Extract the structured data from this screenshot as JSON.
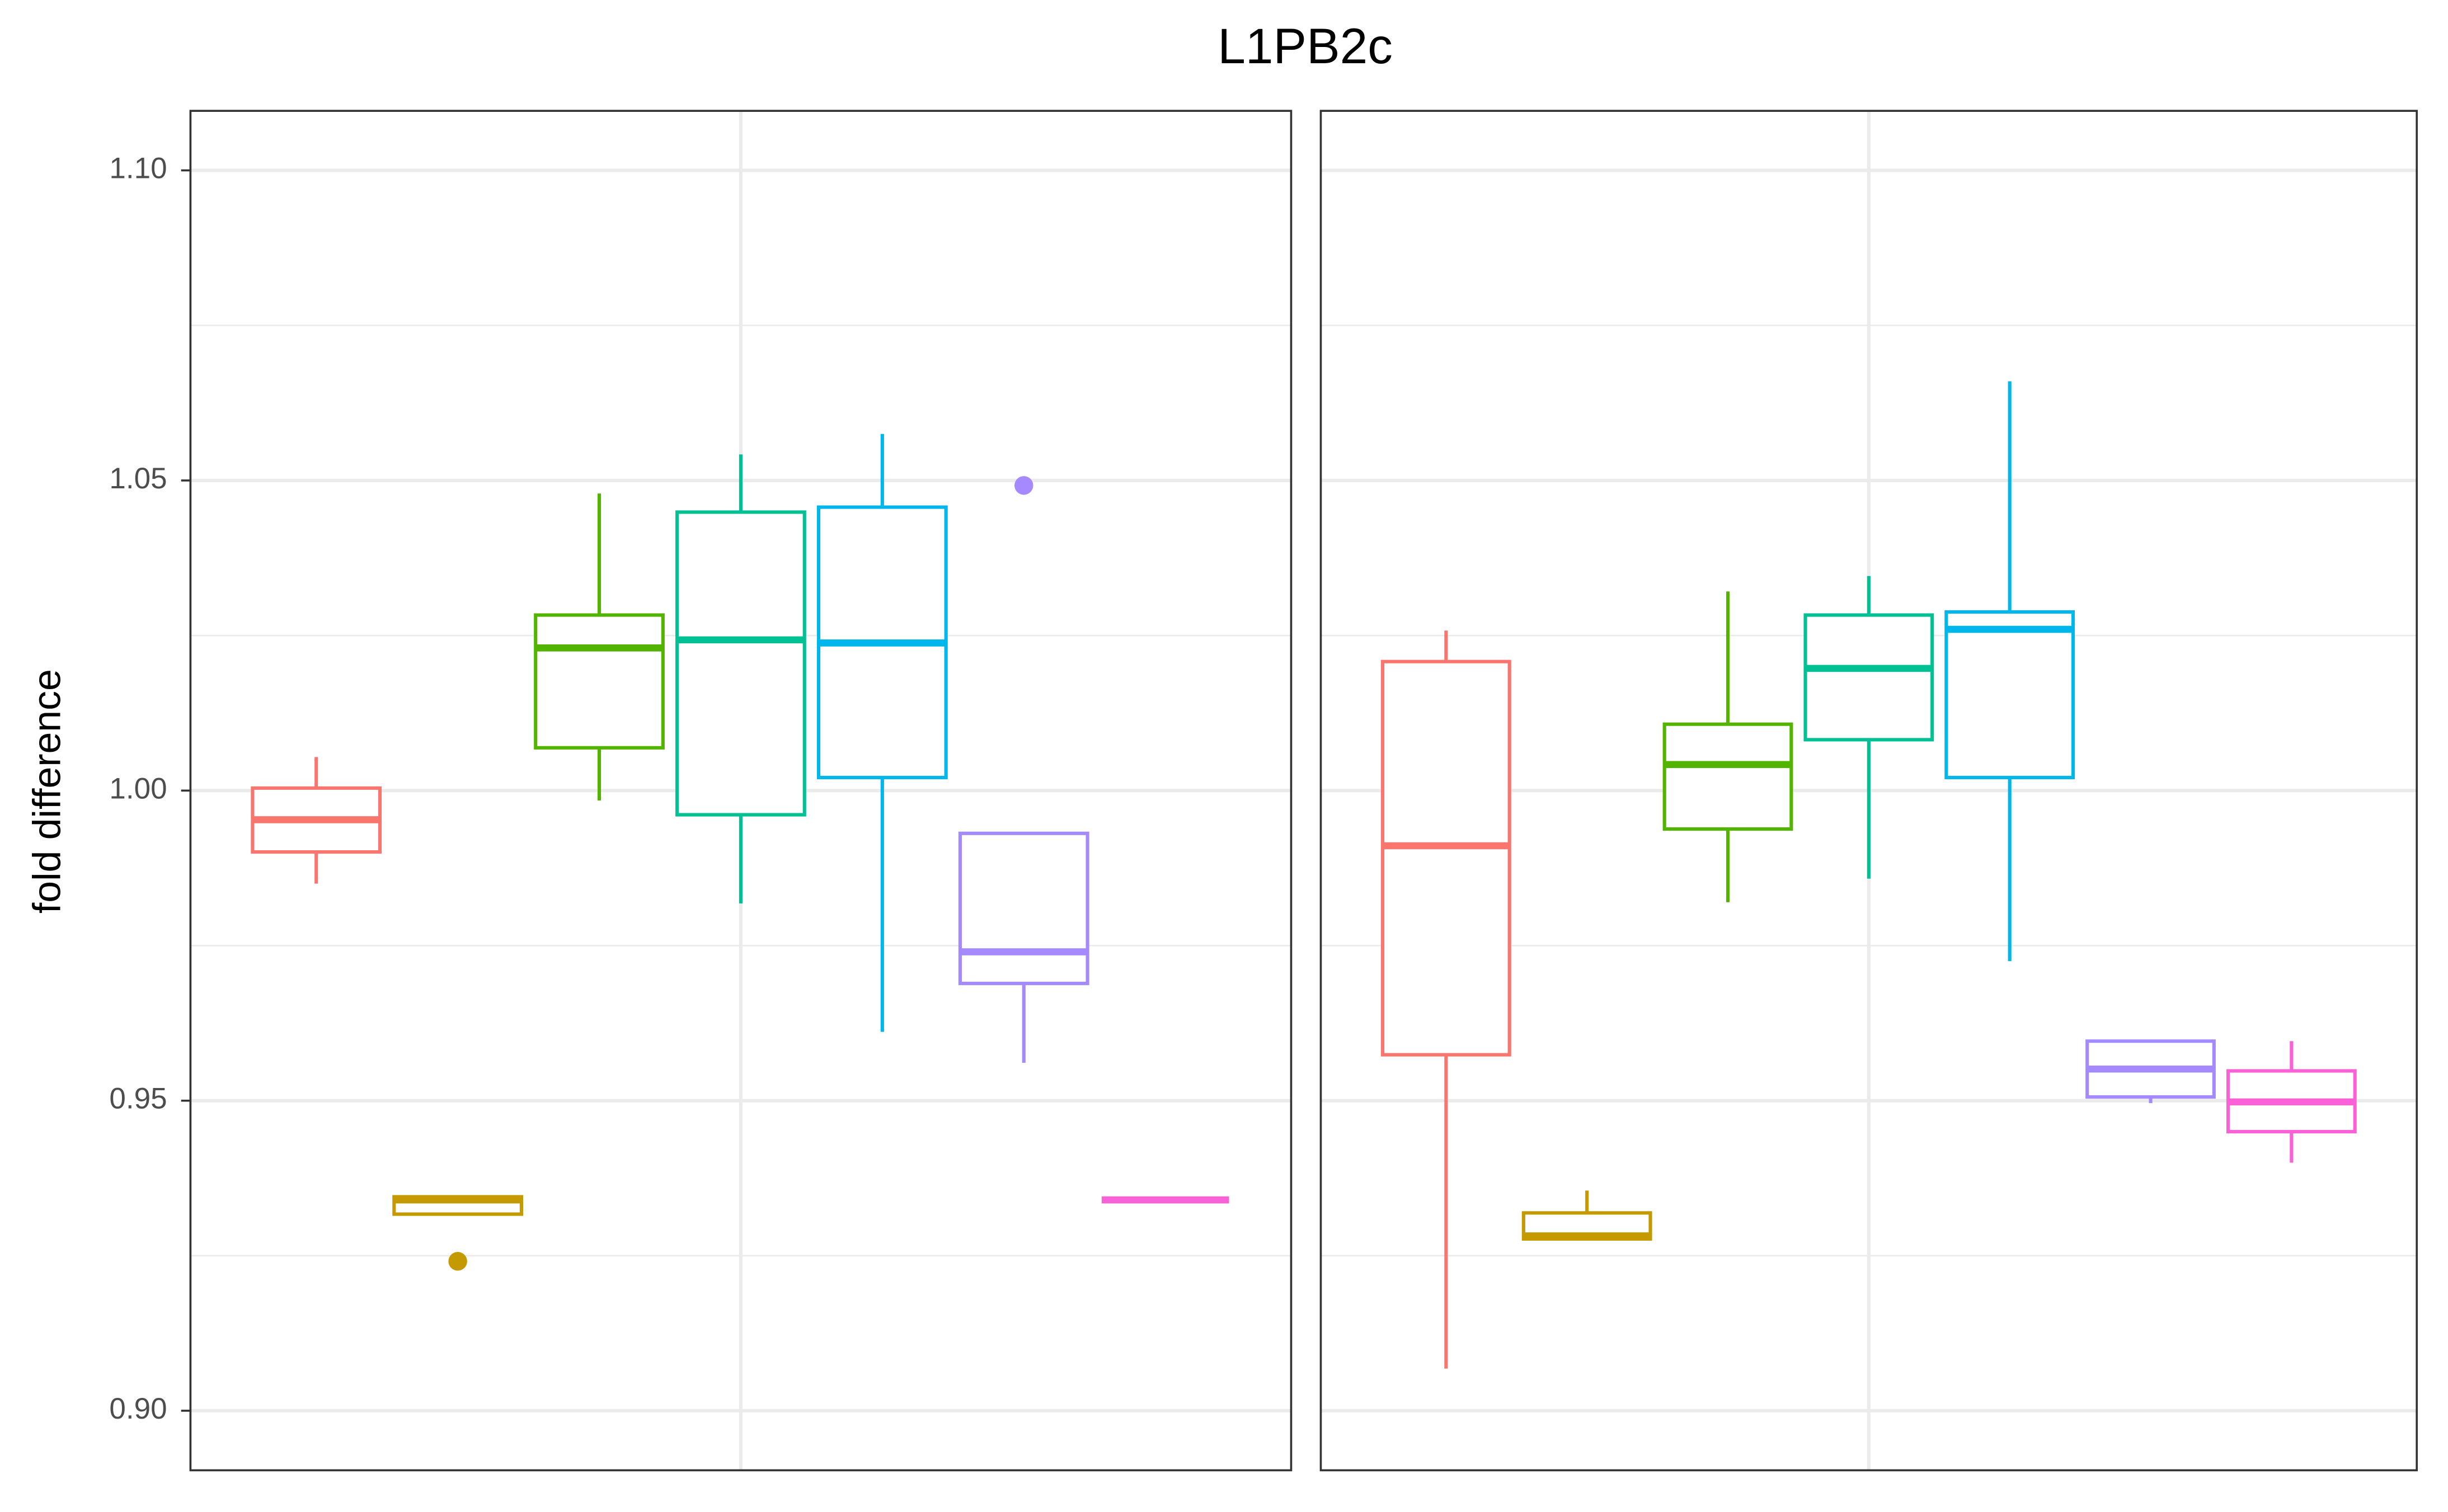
{
  "chart_data": {
    "type": "box",
    "title": "L1PB2c",
    "ylabel": "fold difference",
    "ylim": [
      0.8904,
      1.1096
    ],
    "yticks": [
      {
        "value": 0.9,
        "label": "0.90"
      },
      0.95,
      {
        "value": 1.0,
        "label": "1.00"
      },
      1.05,
      {
        "value": 1.1,
        "label": "1.10"
      }
    ],
    "minor_yticks": [
      0.925,
      0.975,
      1.025,
      1.075
    ],
    "grid": true,
    "panels": [
      {
        "boxes": [
          {
            "color": "#f8766d",
            "low": 0.985,
            "q1": 0.9901,
            "median": 0.9953,
            "q3": 1.0004,
            "high": 1.0054,
            "outliers": []
          },
          {
            "color": "#c49a00",
            "low": 0.9317,
            "q1": 0.9317,
            "median": 0.934,
            "q3": 0.9345,
            "high": 0.9345,
            "outliers": [
              0.9241
            ]
          },
          {
            "color": "#53b400",
            "low": 0.9984,
            "q1": 1.0069,
            "median": 1.023,
            "q3": 1.0283,
            "high": 1.0479,
            "outliers": []
          },
          {
            "color": "#00c094",
            "low": 0.9818,
            "q1": 0.9961,
            "median": 1.0243,
            "q3": 1.0449,
            "high": 1.0542,
            "outliers": []
          },
          {
            "color": "#00b6eb",
            "low": 0.9611,
            "q1": 1.0021,
            "median": 1.0238,
            "q3": 1.0457,
            "high": 1.0575,
            "outliers": []
          },
          {
            "color": "#a58aff",
            "low": 0.9561,
            "q1": 0.9689,
            "median": 0.974,
            "q3": 0.9931,
            "high": 0.9931,
            "outliers": [
              1.0492
            ]
          },
          {
            "color": "#fb61d7",
            "low": 0.934,
            "q1": 0.934,
            "median": 0.934,
            "q3": 0.934,
            "high": 0.934,
            "outliers": []
          }
        ]
      },
      {
        "boxes": [
          {
            "color": "#f8766d",
            "low": 0.9068,
            "q1": 0.9574,
            "median": 0.9911,
            "q3": 1.0208,
            "high": 1.0258,
            "outliers": []
          },
          {
            "color": "#c49a00",
            "low": 0.9277,
            "q1": 0.9277,
            "median": 0.9282,
            "q3": 0.9319,
            "high": 0.9355,
            "outliers": []
          },
          {
            "color": "#53b400",
            "low": 0.982,
            "q1": 0.9938,
            "median": 1.0042,
            "q3": 1.0107,
            "high": 1.0321,
            "outliers": []
          },
          {
            "color": "#00c094",
            "low": 0.9858,
            "q1": 1.0082,
            "median": 1.0197,
            "q3": 1.0283,
            "high": 1.0346,
            "outliers": []
          },
          {
            "color": "#00b6eb",
            "low": 0.9725,
            "q1": 1.0021,
            "median": 1.026,
            "q3": 1.0288,
            "high": 1.066,
            "outliers": []
          },
          {
            "color": "#a58aff",
            "low": 0.9496,
            "q1": 0.9506,
            "median": 0.9551,
            "q3": 0.9596,
            "high": 0.9596,
            "outliers": []
          },
          {
            "color": "#fb61d7",
            "low": 0.94,
            "q1": 0.945,
            "median": 0.9498,
            "q3": 0.9548,
            "high": 0.9596,
            "outliers": []
          }
        ]
      }
    ]
  }
}
